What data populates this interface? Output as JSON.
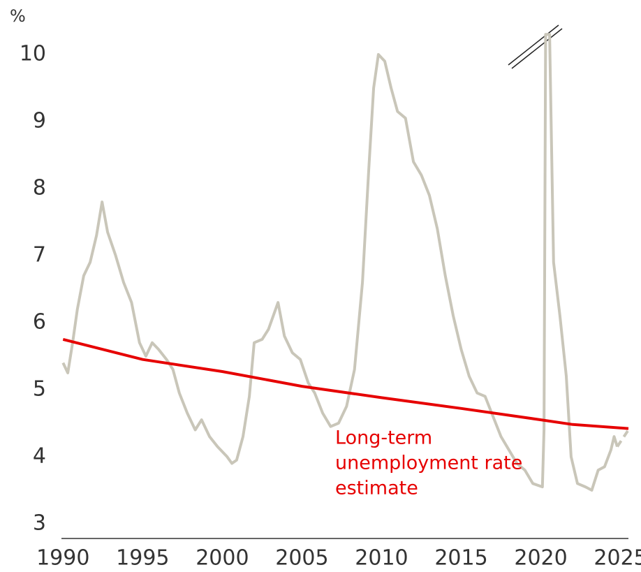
{
  "chart_data": {
    "type": "line",
    "y_unit_label": "%",
    "annotation": [
      "Long-term",
      "unemployment rate",
      "estimate"
    ],
    "annotation_color": "#e60000",
    "xlim": [
      1989.9,
      2025.5
    ],
    "xticks": [
      1990,
      1995,
      2000,
      2005,
      2010,
      2015,
      2020,
      2025
    ],
    "ylim": [
      2.78,
      10.5
    ],
    "yticks": [
      3,
      4,
      5,
      6,
      7,
      8,
      9,
      10
    ],
    "series": [
      {
        "color": "#c9c6b9",
        "style": "solid",
        "x": [
          1990,
          1990.3,
          1990.6,
          1990.9,
          1991.3,
          1991.7,
          1992.1,
          1992.45,
          1992.8,
          1993.3,
          1993.8,
          1994.3,
          1994.8,
          1995.2,
          1995.6,
          1996,
          1996.5,
          1996.9,
          1997.3,
          1997.8,
          1998.3,
          1998.7,
          1999.2,
          1999.7,
          2000.3,
          2000.6,
          2000.9,
          2001.3,
          2001.7,
          2002.0,
          2002.5,
          2002.9,
          2003.5,
          2003.9,
          2004.4,
          2004.9,
          2005.4,
          2005.8,
          2006.3,
          2006.8,
          2007.3,
          2007.8,
          2008.3,
          2008.8,
          2009.2,
          2009.5,
          2009.8,
          2010.2,
          2010.6,
          2011.0,
          2011.5,
          2012.0,
          2012.5,
          2013.0,
          2013.5,
          2014.0,
          2014.5,
          2015.0,
          2015.5,
          2016.0,
          2016.5,
          2017.0,
          2017.5,
          2018.0,
          2018.5,
          2019.0,
          2019.5,
          2020.1,
          2020.2,
          2020.3,
          2020.55,
          2020.8,
          2021.2,
          2021.6,
          2021.9,
          2022.3,
          2022.8,
          2023.2,
          2023.6,
          2024.0,
          2024.4,
          2024.6,
          2024.8
        ],
        "values": [
          5.4,
          5.25,
          5.7,
          6.2,
          6.7,
          6.9,
          7.3,
          7.8,
          7.35,
          7.0,
          6.6,
          6.3,
          5.7,
          5.5,
          5.7,
          5.6,
          5.45,
          5.3,
          4.95,
          4.65,
          4.4,
          4.55,
          4.3,
          4.15,
          4.0,
          3.9,
          3.95,
          4.3,
          4.9,
          5.7,
          5.75,
          5.9,
          6.3,
          5.8,
          5.55,
          5.45,
          5.1,
          4.95,
          4.65,
          4.45,
          4.5,
          4.75,
          5.3,
          6.6,
          8.3,
          9.5,
          10.0,
          9.9,
          9.5,
          9.15,
          9.05,
          8.4,
          8.2,
          7.9,
          7.4,
          6.7,
          6.1,
          5.6,
          5.2,
          4.95,
          4.9,
          4.6,
          4.3,
          4.1,
          3.9,
          3.8,
          3.6,
          3.55,
          4.4,
          10.3,
          10.3,
          6.9,
          6.1,
          5.2,
          4.0,
          3.6,
          3.55,
          3.5,
          3.8,
          3.85,
          4.1,
          4.3,
          4.15
        ]
      },
      {
        "color": "#c9c6b9",
        "style": "dashed",
        "x": [
          2024.8,
          2025.5
        ],
        "values": [
          4.15,
          4.4
        ]
      },
      {
        "color": "#e60000",
        "style": "solid",
        "x": [
          1990,
          1995,
          2000,
          2005,
          2010,
          2015,
          2020,
          2022,
          2025.5
        ],
        "values": [
          5.75,
          5.45,
          5.27,
          5.05,
          4.88,
          4.72,
          4.55,
          4.48,
          4.42
        ]
      }
    ]
  }
}
